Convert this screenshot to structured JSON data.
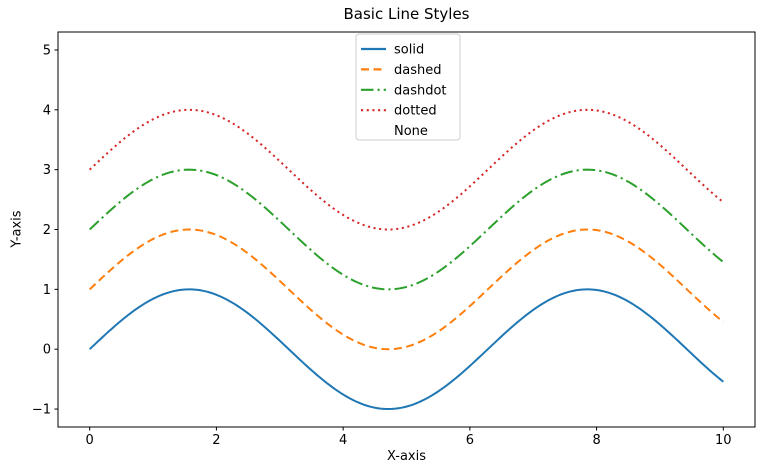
{
  "chart_data": {
    "type": "line",
    "title": "Basic Line Styles",
    "xlabel": "X-axis",
    "ylabel": "Y-axis",
    "xlim": [
      -0.5,
      10.5
    ],
    "ylim": [
      -1.3,
      5.3
    ],
    "x_ticks": [
      0,
      2,
      4,
      6,
      8,
      10
    ],
    "y_ticks": [
      -1,
      0,
      1,
      2,
      3,
      4,
      5
    ],
    "grid": false,
    "x_sampling": {
      "start": 0,
      "end": 10,
      "points": 200
    },
    "y_formula": "y = sin(x) + offset",
    "series": [
      {
        "name": "solid",
        "linestyle": "solid",
        "color": "#1f77b4",
        "offset": 0
      },
      {
        "name": "dashed",
        "linestyle": "dashed",
        "color": "#ff7f0e",
        "offset": 1
      },
      {
        "name": "dashdot",
        "linestyle": "dashdot",
        "color": "#2ca02c",
        "offset": 2
      },
      {
        "name": "dotted",
        "linestyle": "dotted",
        "color": "#d62728",
        "offset": 3
      },
      {
        "name": "None",
        "linestyle": "none",
        "color": null,
        "offset": 4
      }
    ],
    "legend": {
      "position": "upper center",
      "entries": [
        "solid",
        "dashed",
        "dashdot",
        "dotted",
        "None"
      ],
      "border_color": "#cccccc",
      "background": "#ffffff"
    },
    "colors": {
      "spine": "#000000",
      "tick_label": "#000000"
    }
  }
}
